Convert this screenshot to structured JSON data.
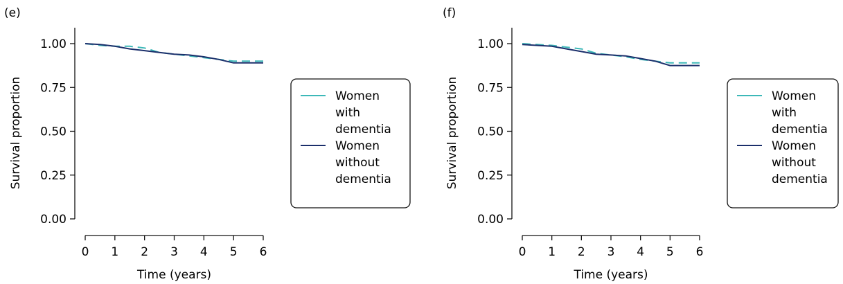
{
  "chart_data": [
    {
      "type": "line",
      "panel_label": "(e)",
      "xlabel": "Time (years)",
      "ylabel": "Survival proportion",
      "xlim": [
        0,
        6
      ],
      "ylim": [
        0,
        1
      ],
      "xticks": [
        "0",
        "1",
        "2",
        "3",
        "4",
        "5",
        "6"
      ],
      "yticks": [
        "0.00",
        "0.25",
        "0.50",
        "0.75",
        "1.00"
      ],
      "grid": false,
      "legend_position": "right",
      "series": [
        {
          "name": "Women with dementia",
          "legend_lines": [
            "Women",
            "with",
            "dementia"
          ],
          "color": "#3db8b8",
          "dash": "dashed",
          "x": [
            0,
            0.5,
            1,
            1.5,
            2,
            2.5,
            3,
            3.5,
            4,
            4.5,
            5,
            5.5,
            6
          ],
          "y": [
            1.0,
            0.99,
            0.985,
            0.985,
            0.975,
            0.95,
            0.94,
            0.93,
            0.92,
            0.91,
            0.9,
            0.9,
            0.9
          ]
        },
        {
          "name": "Women without dementia",
          "legend_lines": [
            "Women",
            "without",
            "dementia"
          ],
          "color": "#1b2f6b",
          "dash": "solid",
          "x": [
            0,
            0.5,
            1,
            1.5,
            2,
            2.5,
            3,
            3.5,
            4,
            4.5,
            5,
            5.5,
            6
          ],
          "y": [
            1.0,
            0.995,
            0.985,
            0.97,
            0.96,
            0.95,
            0.94,
            0.935,
            0.925,
            0.91,
            0.89,
            0.89,
            0.89
          ]
        }
      ]
    },
    {
      "type": "line",
      "panel_label": "(f)",
      "xlabel": "Time (years)",
      "ylabel": "Survival proportion",
      "xlim": [
        0,
        6
      ],
      "ylim": [
        0,
        1
      ],
      "xticks": [
        "0",
        "1",
        "2",
        "3",
        "4",
        "5",
        "6"
      ],
      "yticks": [
        "0.00",
        "0.25",
        "0.50",
        "0.75",
        "1.00"
      ],
      "grid": false,
      "legend_position": "right",
      "series": [
        {
          "name": "Women with dementia",
          "legend_lines": [
            "Women",
            "with",
            "dementia"
          ],
          "color": "#3db8b8",
          "dash": "dashed",
          "x": [
            0,
            0.5,
            1,
            1.5,
            2,
            2.5,
            3,
            3.5,
            4,
            4.5,
            5,
            5.5,
            6
          ],
          "y": [
            1.0,
            0.995,
            0.99,
            0.98,
            0.97,
            0.945,
            0.935,
            0.925,
            0.91,
            0.9,
            0.89,
            0.89,
            0.89
          ]
        },
        {
          "name": "Women without dementia",
          "legend_lines": [
            "Women",
            "without",
            "dementia"
          ],
          "color": "#1b2f6b",
          "dash": "solid",
          "x": [
            0,
            0.5,
            1,
            1.5,
            2,
            2.5,
            3,
            3.5,
            4,
            4.5,
            5,
            5.5,
            6
          ],
          "y": [
            0.995,
            0.99,
            0.985,
            0.97,
            0.955,
            0.94,
            0.935,
            0.93,
            0.915,
            0.9,
            0.875,
            0.875,
            0.875
          ]
        }
      ]
    }
  ]
}
